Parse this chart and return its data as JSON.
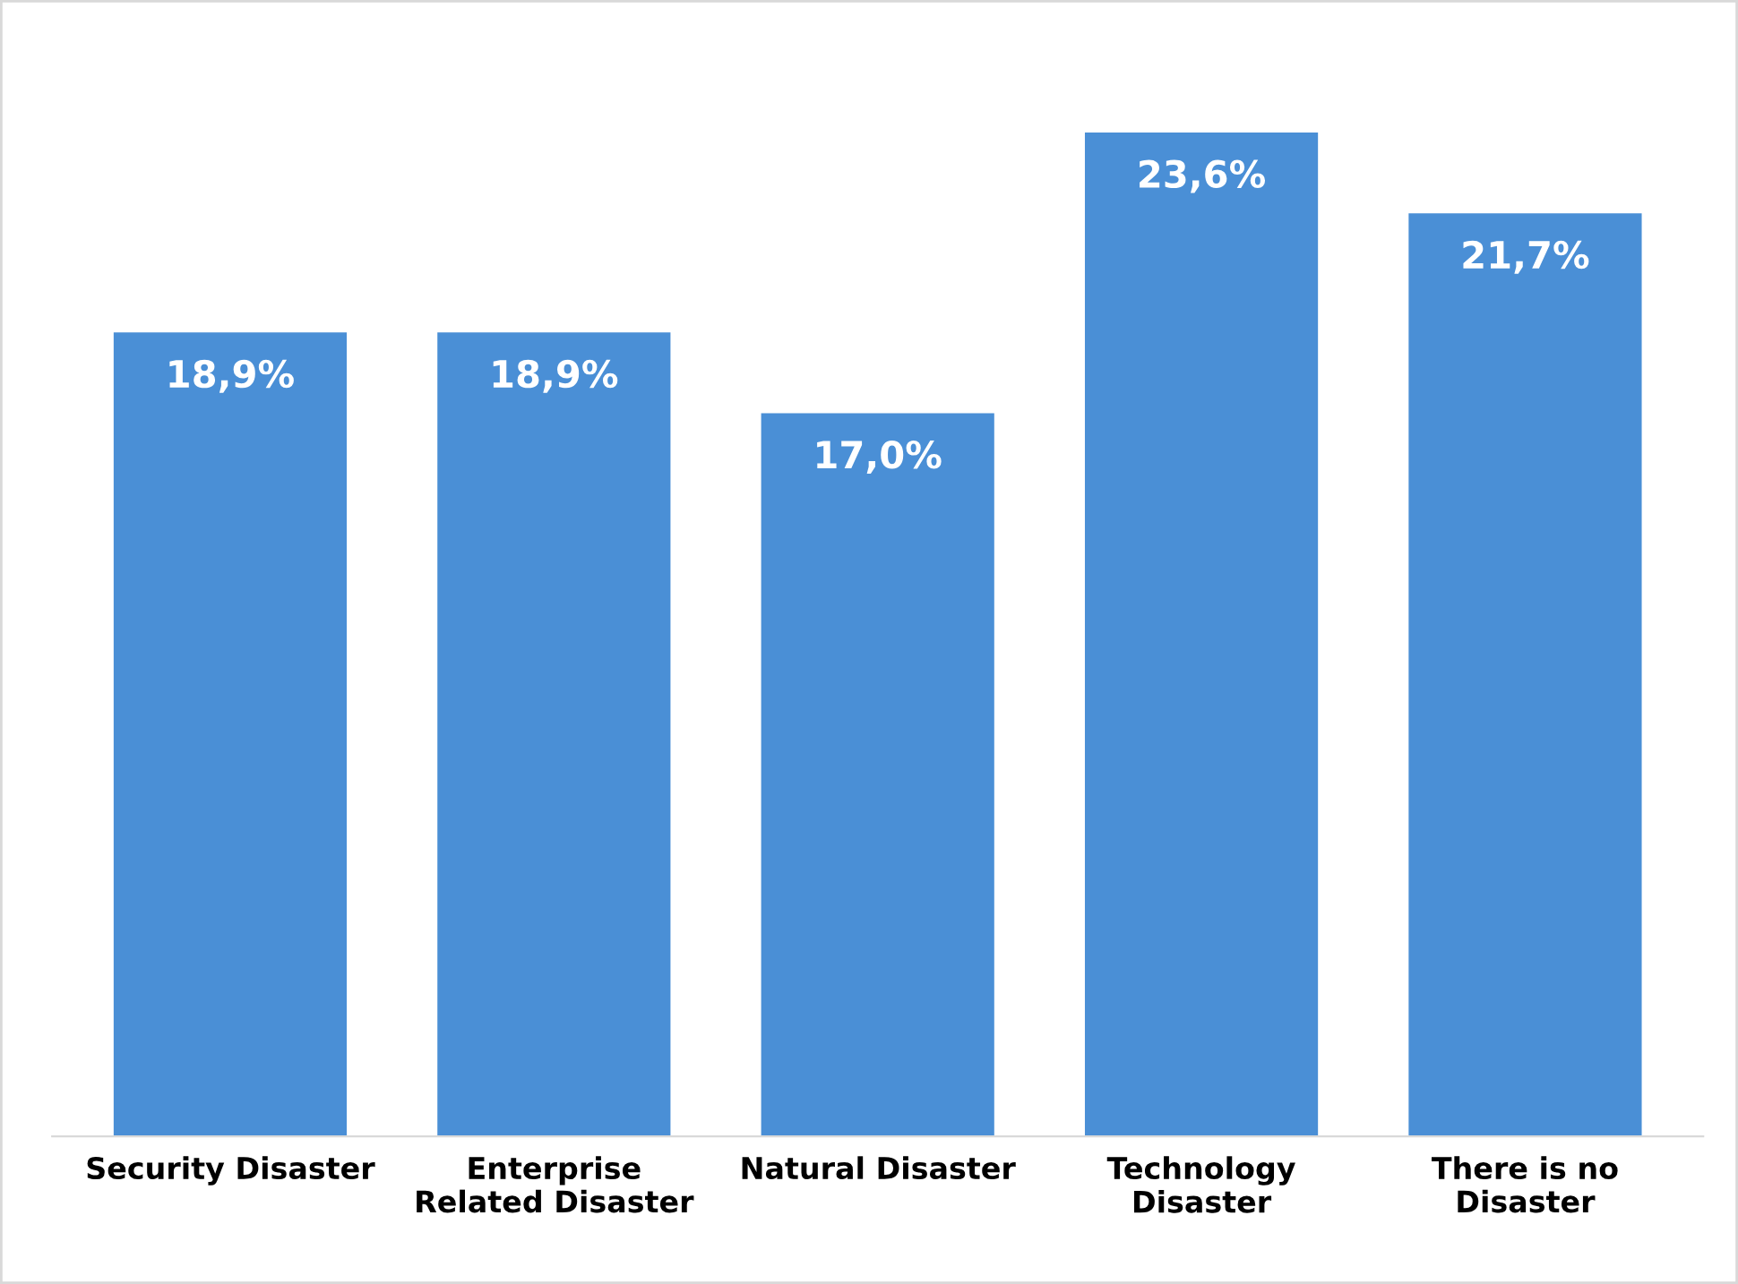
{
  "chart_data": {
    "type": "bar",
    "categories": [
      "Security Disaster",
      "Enterprise\nRelated Disaster",
      "Natural Disaster",
      "Technology\nDisaster",
      "There is no\nDisaster"
    ],
    "values": [
      18.9,
      18.9,
      17.0,
      23.6,
      21.7
    ],
    "value_labels": [
      "18,9%",
      "18,9%",
      "17,0%",
      "23,6%",
      "21,7%"
    ],
    "color": "#4a8fd6",
    "grid": false,
    "legend": false
  }
}
